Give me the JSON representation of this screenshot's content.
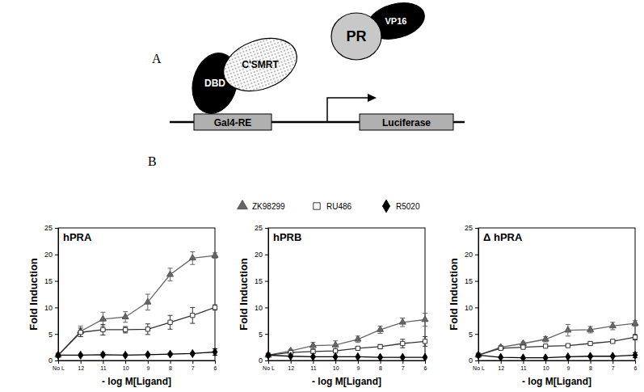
{
  "panel_labels": [
    "A",
    "B"
  ],
  "diagram": {
    "proteins": [
      {
        "label": "DBD"
      },
      {
        "label": "C'SMRT"
      },
      {
        "label": "PR"
      },
      {
        "label": "VP16"
      }
    ],
    "elements": [
      {
        "label": "Gal4-RE"
      },
      {
        "label": "Luciferase"
      }
    ]
  },
  "chart_data": [
    {
      "type": "line",
      "title": "hPRA",
      "x_label": "- log M[Ligand]",
      "y_label": "Fold Induction",
      "categories": [
        "No L",
        "12",
        "11",
        "10",
        "9",
        "8",
        "7",
        "6"
      ],
      "ylim": [
        0,
        25
      ],
      "yticks": [
        0,
        5,
        10,
        15,
        20,
        25
      ],
      "legend": "top",
      "series": [
        {
          "name": "ZK98299",
          "color": "#666666",
          "marker": "triangle",
          "values": [
            1,
            5.5,
            7.8,
            8.2,
            11,
            16.2,
            19.3,
            19.8
          ],
          "errors": [
            0,
            1,
            1.3,
            1,
            1.5,
            1.2,
            1.2,
            0.5
          ]
        },
        {
          "name": "RU486",
          "color": "#333333",
          "marker": "square-open",
          "values": [
            1,
            5.3,
            5.8,
            5.8,
            5.9,
            7.2,
            8.5,
            10
          ],
          "errors": [
            0,
            0.8,
            1,
            0.6,
            1,
            1.3,
            1.5,
            0.5
          ]
        },
        {
          "name": "R5020",
          "color": "#000000",
          "marker": "diamond",
          "values": [
            1,
            1,
            1.1,
            1,
            1.1,
            1.2,
            1.3,
            1.6
          ],
          "errors": [
            0,
            0.2,
            0.3,
            0.2,
            0.2,
            0.2,
            0.2,
            0.6
          ]
        }
      ]
    },
    {
      "type": "line",
      "title": "hPRB",
      "x_label": "- log M[Ligand]",
      "y_label": "Fold Induction",
      "categories": [
        "No L",
        "12",
        "11",
        "10",
        "9",
        "8",
        "7",
        "6"
      ],
      "ylim": [
        0,
        25
      ],
      "yticks": [
        0,
        5,
        10,
        15,
        20,
        25
      ],
      "series": [
        {
          "color": "#666666",
          "marker": "triangle",
          "values": [
            1,
            1.8,
            2.8,
            2.9,
            4,
            5.8,
            7.2,
            7.7
          ],
          "errors": [
            0,
            0.3,
            0.6,
            0.8,
            0.6,
            0.7,
            0.8,
            1.2
          ]
        },
        {
          "color": "#333333",
          "marker": "square-open",
          "values": [
            1,
            1.5,
            1.7,
            1.8,
            2.3,
            2.6,
            3.2,
            3.6
          ],
          "errors": [
            0,
            0.3,
            0.3,
            0.3,
            0.3,
            0.4,
            0.8,
            0.9
          ]
        },
        {
          "color": "#000000",
          "marker": "diamond",
          "values": [
            1,
            0.8,
            0.7,
            0.7,
            0.7,
            0.6,
            0.6,
            0.6
          ],
          "errors": [
            0,
            0.1,
            0.1,
            0.1,
            0.1,
            0.1,
            0.1,
            0.1
          ]
        }
      ]
    },
    {
      "type": "line",
      "title": "Δ hPRA",
      "x_label": "- log M[Ligand]",
      "y_label": "Fold Induction",
      "categories": [
        "No L",
        "12",
        "11",
        "10",
        "9",
        "8",
        "7",
        "6"
      ],
      "ylim": [
        0,
        25
      ],
      "yticks": [
        0,
        5,
        10,
        15,
        20,
        25
      ],
      "series": [
        {
          "color": "#666666",
          "marker": "triangle",
          "values": [
            1,
            2.5,
            3.2,
            4,
            5.7,
            5.8,
            6.5,
            7
          ],
          "errors": [
            0,
            0.3,
            0.3,
            0.5,
            1.1,
            0.6,
            0.7,
            0.5
          ]
        },
        {
          "color": "#333333",
          "marker": "square-open",
          "values": [
            1,
            2.3,
            2.5,
            2.7,
            2.8,
            3.2,
            3.6,
            4.4
          ],
          "errors": [
            0,
            0.2,
            0.2,
            0.2,
            0.2,
            0.3,
            0.3,
            0.5
          ]
        },
        {
          "color": "#000000",
          "marker": "diamond",
          "values": [
            1,
            0.6,
            0.5,
            0.5,
            0.7,
            0.8,
            0.8,
            1
          ],
          "errors": [
            0,
            0.1,
            0.1,
            0.1,
            0.1,
            0.1,
            0.1,
            0.5
          ]
        }
      ]
    }
  ]
}
